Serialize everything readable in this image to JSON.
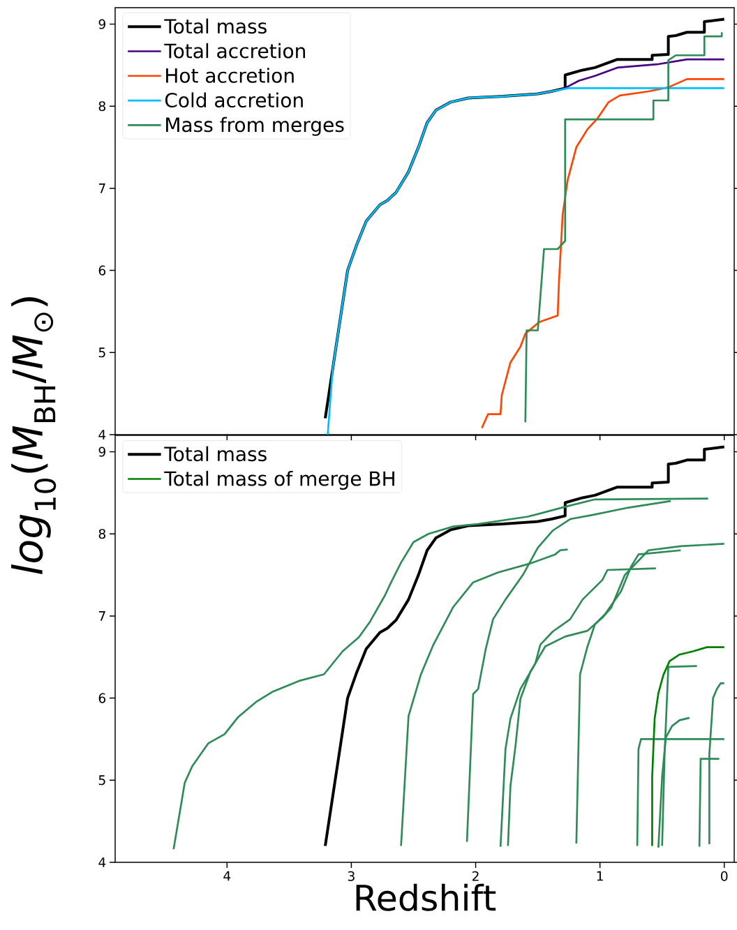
{
  "chart_data": [
    {
      "type": "line",
      "ylabel": "*log*$_{10}$(*M*$_{BH}$/*M*$_{⊙}$)",
      "xlim": [
        4.9,
        -0.08
      ],
      "ylim": [
        4,
        9.2
      ],
      "xticks": [
        4,
        3,
        2,
        1,
        0
      ],
      "yticks": [
        4,
        5,
        6,
        7,
        8,
        9
      ],
      "tick_labels": "y",
      "legend": "top left",
      "series": [
        {
          "name": "Total mass",
          "color": "#000000",
          "x": [
            3.21,
            3.15,
            3.13,
            3.08,
            3.03,
            2.96,
            2.88,
            2.77,
            2.71,
            2.64,
            2.54,
            2.46,
            2.39,
            2.32,
            2.2,
            2.06,
            1.78,
            1.5,
            1.39,
            1.28,
            1.28,
            1.14,
            1.04,
            0.86,
            0.58,
            0.58,
            0.45,
            0.45,
            0.39,
            0.3,
            0.16,
            0.16,
            0.0
          ],
          "values": [
            4.2,
            4.8,
            5.0,
            5.5,
            6.0,
            6.3,
            6.6,
            6.8,
            6.85,
            6.95,
            7.2,
            7.5,
            7.8,
            7.95,
            8.05,
            8.1,
            8.12,
            8.15,
            8.18,
            8.22,
            8.38,
            8.44,
            8.47,
            8.57,
            8.57,
            8.62,
            8.63,
            8.85,
            8.86,
            8.9,
            8.9,
            9.03,
            9.06
          ]
        },
        {
          "name": "Total accretion",
          "color": "#4b0082",
          "x": [
            1.3,
            1.27,
            1.17,
            1.04,
            0.86,
            0.54,
            0.3,
            0.0
          ],
          "values": [
            8.21,
            8.23,
            8.31,
            8.37,
            8.47,
            8.51,
            8.57,
            8.57
          ]
        },
        {
          "name": "Hot accretion",
          "color": "#ff4500",
          "x": [
            1.95,
            1.9,
            1.8,
            1.79,
            1.72,
            1.64,
            1.6,
            1.49,
            1.34,
            1.33,
            1.3,
            1.26,
            1.19,
            1.1,
            1.02,
            0.93,
            0.84,
            0.61,
            0.45,
            0.3,
            0.0
          ],
          "values": [
            4.08,
            4.25,
            4.25,
            4.48,
            4.88,
            5.07,
            5.23,
            5.37,
            5.45,
            5.85,
            6.68,
            7.1,
            7.5,
            7.72,
            7.85,
            8.05,
            8.13,
            8.18,
            8.23,
            8.33,
            8.33
          ]
        },
        {
          "name": "Cold accretion",
          "color": "#00bfff",
          "x": [
            3.19,
            3.15,
            3.13,
            3.08,
            3.03,
            2.96,
            2.88,
            2.77,
            2.71,
            2.64,
            2.54,
            2.46,
            2.39,
            2.32,
            2.2,
            2.06,
            1.78,
            1.5,
            1.39,
            1.25,
            0.0
          ],
          "values": [
            4.0,
            4.8,
            5.0,
            5.5,
            6.0,
            6.3,
            6.6,
            6.8,
            6.85,
            6.95,
            7.2,
            7.5,
            7.8,
            7.95,
            8.05,
            8.1,
            8.12,
            8.15,
            8.18,
            8.22,
            8.22
          ]
        },
        {
          "name": "Mass from merges",
          "color": "#2e8b57",
          "x": [
            1.6,
            1.59,
            1.5,
            1.45,
            1.34,
            1.28,
            1.28,
            0.57,
            0.57,
            0.45,
            0.45,
            0.39,
            0.16,
            0.16,
            0.02,
            0.02
          ],
          "values": [
            4.15,
            5.27,
            5.27,
            6.26,
            6.26,
            6.36,
            7.84,
            7.84,
            8.07,
            8.07,
            8.56,
            8.62,
            8.62,
            8.85,
            8.85,
            8.9
          ]
        }
      ]
    },
    {
      "type": "line",
      "xlabel": "Redshift",
      "xlim": [
        4.9,
        -0.08
      ],
      "ylim": [
        4,
        9.2
      ],
      "xticks": [
        4,
        3,
        2,
        1,
        0
      ],
      "yticks": [
        4,
        5,
        6,
        7,
        8,
        9
      ],
      "legend": "top left",
      "series": [
        {
          "name": "Total mass",
          "color": "#000000",
          "x": [
            3.21,
            3.15,
            3.13,
            3.08,
            3.03,
            2.96,
            2.88,
            2.77,
            2.71,
            2.64,
            2.54,
            2.46,
            2.39,
            2.32,
            2.2,
            2.06,
            1.78,
            1.5,
            1.39,
            1.28,
            1.28,
            1.14,
            1.04,
            0.86,
            0.58,
            0.58,
            0.45,
            0.45,
            0.39,
            0.3,
            0.16,
            0.16,
            0.0
          ],
          "values": [
            4.2,
            4.8,
            5.0,
            5.5,
            6.0,
            6.3,
            6.6,
            6.8,
            6.85,
            6.95,
            7.2,
            7.5,
            7.8,
            7.95,
            8.05,
            8.1,
            8.12,
            8.15,
            8.18,
            8.22,
            8.38,
            8.44,
            8.47,
            8.57,
            8.57,
            8.62,
            8.63,
            8.85,
            8.86,
            8.9,
            8.9,
            9.03,
            9.06
          ]
        },
        {
          "color": "#2e8b57",
          "x": [
            4.43,
            4.34,
            4.28,
            4.15,
            4.02,
            3.91,
            3.76,
            3.63,
            3.42,
            3.22,
            3.07,
            2.94,
            2.85,
            2.73,
            2.68,
            2.6,
            2.5,
            2.38,
            2.18,
            1.98,
            1.58,
            1.28,
            1.04,
            0.13
          ],
          "values": [
            4.16,
            4.97,
            5.17,
            5.45,
            5.56,
            5.77,
            5.96,
            6.08,
            6.21,
            6.29,
            6.57,
            6.74,
            6.93,
            7.25,
            7.41,
            7.65,
            7.9,
            8.0,
            8.09,
            8.12,
            8.21,
            8.33,
            8.42,
            8.43
          ]
        },
        {
          "color": "#2e8b57",
          "x": [
            2.6,
            2.54,
            2.44,
            2.34,
            2.18,
            2.02,
            1.82,
            1.56,
            1.36,
            1.32,
            1.26
          ],
          "values": [
            4.2,
            5.78,
            6.29,
            6.65,
            7.11,
            7.41,
            7.53,
            7.64,
            7.75,
            7.8,
            7.81
          ]
        },
        {
          "color": "#2e8b57",
          "x": [
            2.07,
            2.02,
            1.98,
            1.92,
            1.86,
            1.76,
            1.62,
            1.5,
            1.38,
            1.24,
            1.06,
            0.77,
            0.43
          ],
          "values": [
            4.25,
            6.05,
            6.11,
            6.59,
            6.96,
            7.2,
            7.5,
            7.83,
            8.04,
            8.18,
            8.23,
            8.32,
            8.4
          ]
        },
        {
          "color": "#2e8b57",
          "x": [
            1.8,
            1.76,
            1.72,
            1.64,
            1.52,
            1.48,
            1.38,
            1.24,
            1.14,
            0.98,
            0.94,
            0.55
          ],
          "values": [
            4.19,
            5.38,
            5.75,
            6.11,
            6.42,
            6.65,
            6.81,
            6.96,
            7.2,
            7.44,
            7.56,
            7.58
          ]
        },
        {
          "color": "#2e8b57",
          "x": [
            1.74,
            1.72,
            1.68,
            1.64,
            1.56,
            1.44,
            1.28,
            1.1,
            0.98,
            0.91,
            0.8,
            0.61,
            0.35,
            0.0
          ],
          "values": [
            4.2,
            4.93,
            5.41,
            5.99,
            6.32,
            6.63,
            6.75,
            6.82,
            6.98,
            7.1,
            7.5,
            7.8,
            7.85,
            7.88
          ]
        },
        {
          "color": "#2e8b57",
          "x": [
            1.19,
            1.16,
            1.1,
            1.04,
            0.96,
            0.83,
            0.75,
            0.69,
            0.35
          ],
          "values": [
            4.23,
            6.29,
            6.63,
            6.9,
            7.02,
            7.3,
            7.6,
            7.75,
            7.8
          ]
        },
        {
          "color": "#2e8b57",
          "x": [
            0.7,
            0.69,
            0.67,
            0.0
          ],
          "values": [
            4.2,
            5.38,
            5.5,
            5.5
          ]
        },
        {
          "color": "#2e8b57",
          "x": [
            0.53,
            0.5,
            0.47,
            0.42,
            0.36,
            0.28
          ],
          "values": [
            4.18,
            5.04,
            5.52,
            5.66,
            5.73,
            5.76
          ]
        },
        {
          "color": "#2e8b57",
          "x": [
            0.5,
            0.48,
            0.45,
            0.22
          ],
          "values": [
            4.2,
            5.32,
            6.38,
            6.39
          ]
        },
        {
          "color": "#2e8b57",
          "x": [
            0.2,
            0.19,
            0.04
          ],
          "values": [
            4.19,
            5.26,
            5.26
          ]
        },
        {
          "color": "#2e8b57",
          "x": [
            0.12,
            0.12,
            0.09,
            0.06,
            0.03,
            0.0
          ],
          "values": [
            4.22,
            5.32,
            6.0,
            6.11,
            6.18,
            6.18
          ]
        },
        {
          "name": "Total mass of merge BH",
          "color": "#008000",
          "x": [
            0.58,
            0.58,
            0.56,
            0.53,
            0.49,
            0.44,
            0.36,
            0.25,
            0.14,
            0.0
          ],
          "values": [
            4.2,
            5.04,
            5.75,
            6.06,
            6.28,
            6.45,
            6.53,
            6.57,
            6.62,
            6.62
          ]
        }
      ]
    }
  ]
}
